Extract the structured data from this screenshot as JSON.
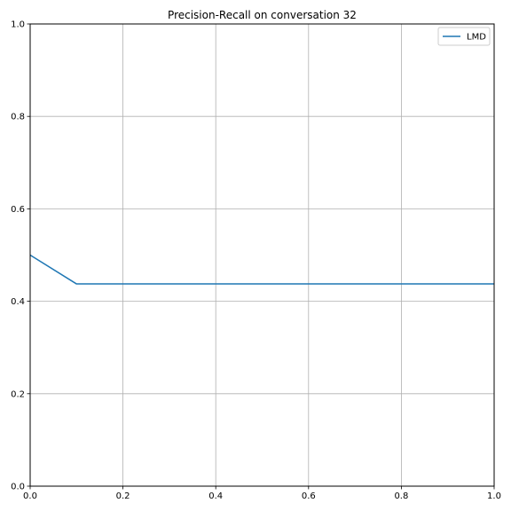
{
  "chart_data": {
    "type": "line",
    "title": "Precision-Recall on conversation 32",
    "xlabel": "",
    "ylabel": "",
    "xlim": [
      0,
      1
    ],
    "ylim": [
      0,
      1
    ],
    "x_ticks": [
      "0.0",
      "0.2",
      "0.4",
      "0.6",
      "0.8",
      "1.0"
    ],
    "y_ticks": [
      "0.0",
      "0.2",
      "0.4",
      "0.6",
      "0.8",
      "1.0"
    ],
    "grid": true,
    "legend": {
      "position": "top-right",
      "entries": [
        "LMD"
      ]
    },
    "colors": {
      "LMD": "#1f77b4",
      "grid": "#b0b0b0"
    },
    "series": [
      {
        "name": "LMD",
        "x": [
          0.0,
          0.1,
          0.2,
          0.3,
          0.4,
          0.5,
          0.6,
          0.7,
          0.8,
          0.9,
          1.0
        ],
        "y": [
          0.5,
          0.4375,
          0.4375,
          0.4375,
          0.4375,
          0.4375,
          0.4375,
          0.4375,
          0.4375,
          0.4375,
          0.4375
        ]
      }
    ]
  }
}
